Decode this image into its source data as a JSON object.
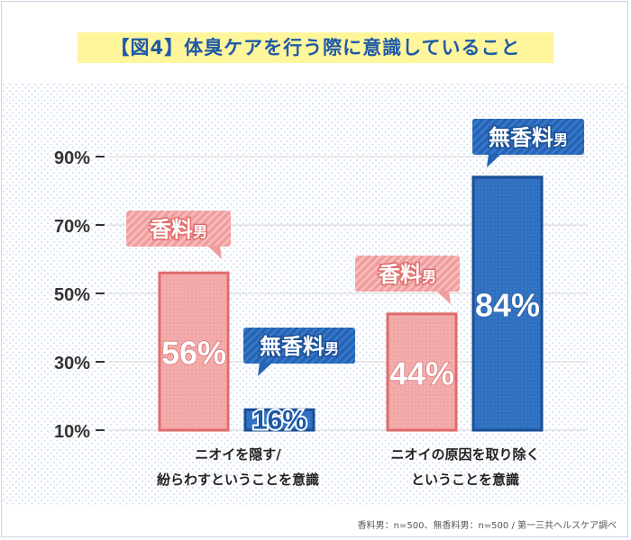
{
  "title": "【図4】体臭ケアを行う際に意識していること",
  "footnote": "香料男：n=500、無香料男：n=500 / 第一三共ヘルスケア調べ",
  "colors": {
    "title_text": "#1f5aa8",
    "title_band": "#fff59a",
    "background_dots": "#d7e3f3",
    "pink_fill": "#f2a7a7",
    "pink_border": "#e06c6c",
    "blue_fill": "#2f6fbf",
    "blue_border": "#1a4f96",
    "axis_text": "#333333"
  },
  "chart_data": {
    "type": "bar",
    "ylim": [
      10,
      90
    ],
    "yticks": [
      "10%",
      "30%",
      "50%",
      "70%",
      "90%"
    ],
    "grid": true,
    "categories": [
      [
        "ニオイを隠す/",
        "紛らわすということを意識"
      ],
      [
        "ニオイの原因を取り除く",
        "ということを意識"
      ]
    ],
    "series": [
      {
        "name": "香料男",
        "values": [
          56,
          44
        ],
        "labels": [
          "56%",
          "44%"
        ]
      },
      {
        "name": "無香料男",
        "values": [
          16,
          84
        ],
        "labels": [
          "16%",
          "84%"
        ]
      }
    ]
  }
}
